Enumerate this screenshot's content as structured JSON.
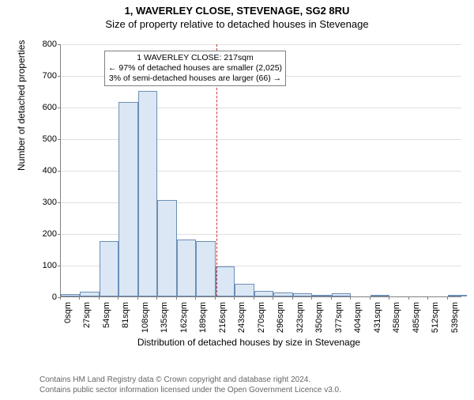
{
  "title": "1, WAVERLEY CLOSE, STEVENAGE, SG2 8RU",
  "subtitle": "Size of property relative to detached houses in Stevenage",
  "ylabel": "Number of detached properties",
  "xlabel": "Distribution of detached houses by size in Stevenage",
  "chart": {
    "type": "histogram",
    "ylim": [
      0,
      800
    ],
    "ytick_step": 100,
    "xlim": [
      0,
      560
    ],
    "xtick_step": 27,
    "bin_width": 27,
    "values": [
      8,
      15,
      175,
      615,
      650,
      305,
      180,
      175,
      95,
      40,
      18,
      12,
      10,
      6,
      10,
      0,
      2,
      0,
      0,
      0,
      2
    ],
    "bar_fill": "#dbe7f4",
    "bar_stroke": "#6b8fb5",
    "grid_color": "#e0e0e0",
    "axis_color": "#808080",
    "background_color": "#ffffff",
    "tick_fontsize": 11,
    "label_fontsize": 12,
    "reference_line": {
      "x": 217,
      "color": "#cc3333",
      "dash": true
    }
  },
  "annotation": {
    "line1": "1 WAVERLEY CLOSE: 217sqm",
    "line2": "← 97% of detached houses are smaller (2,025)",
    "line3": "3% of semi-detached houses are larger (66) →"
  },
  "xtick_labels": [
    "0sqm",
    "27sqm",
    "54sqm",
    "81sqm",
    "108sqm",
    "135sqm",
    "162sqm",
    "189sqm",
    "216sqm",
    "243sqm",
    "270sqm",
    "296sqm",
    "323sqm",
    "350sqm",
    "377sqm",
    "404sqm",
    "431sqm",
    "458sqm",
    "485sqm",
    "512sqm",
    "539sqm"
  ],
  "footnote_line1": "Contains HM Land Registry data © Crown copyright and database right 2024.",
  "footnote_line2": "Contains public sector information licensed under the Open Government Licence v3.0."
}
